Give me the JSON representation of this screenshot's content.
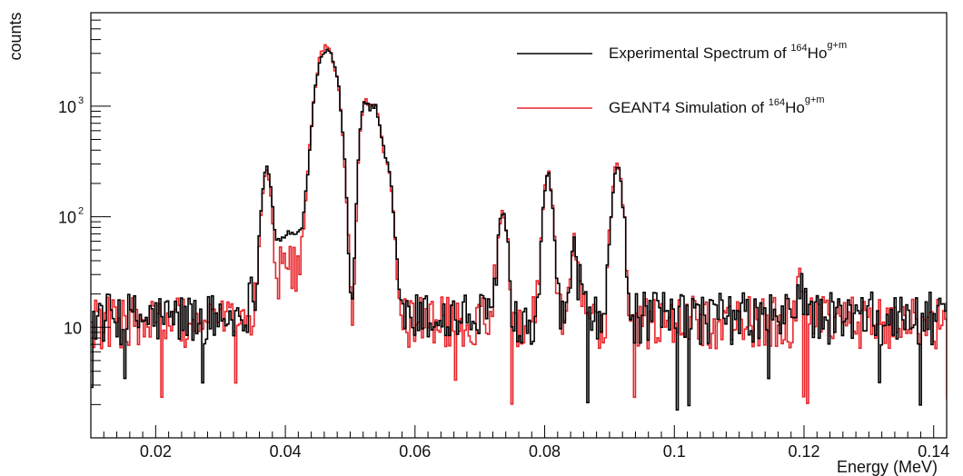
{
  "chart_data": {
    "type": "line",
    "title": "",
    "xlabel": "Energy (MeV)",
    "ylabel": "counts",
    "xlim": [
      0.01,
      0.142
    ],
    "ylim": [
      1.0,
      7000
    ],
    "y_scale": "log",
    "grid": false,
    "legend_position": "top-right",
    "x_ticks": [
      {
        "value": 0.02,
        "label": "0.02"
      },
      {
        "value": 0.04,
        "label": "0.04"
      },
      {
        "value": 0.06,
        "label": "0.06"
      },
      {
        "value": 0.08,
        "label": "0.08"
      },
      {
        "value": 0.1,
        "label": "0.1"
      },
      {
        "value": 0.12,
        "label": "0.12"
      },
      {
        "value": 0.14,
        "label": "0.14"
      }
    ],
    "y_ticks": [
      {
        "value": 10,
        "base": "10",
        "exp": ""
      },
      {
        "value": 100,
        "base": "10",
        "exp": "2"
      },
      {
        "value": 1000,
        "base": "10",
        "exp": "3"
      }
    ],
    "bin_width": 0.0003,
    "series": [
      {
        "name": "Experimental Spectrum of 164Ho g+m",
        "legend": {
          "prefix": "Experimental Spectrum of ",
          "mass": "164",
          "element": "Ho",
          "state": "g+m"
        },
        "color": "#000000",
        "baseline": 12,
        "peaks": [
          {
            "center": 0.0371,
            "height": 245,
            "width": 0.0006
          },
          {
            "center": 0.0408,
            "height": 60,
            "width": 0.0028
          },
          {
            "center": 0.046,
            "height": 3000,
            "width": 0.0011
          },
          {
            "center": 0.0477,
            "height": 1300,
            "width": 0.0008
          },
          {
            "center": 0.0522,
            "height": 960,
            "width": 0.0007
          },
          {
            "center": 0.0538,
            "height": 900,
            "width": 0.0007
          },
          {
            "center": 0.0555,
            "height": 290,
            "width": 0.0008
          },
          {
            "center": 0.0735,
            "height": 100,
            "width": 0.0006
          },
          {
            "center": 0.0805,
            "height": 230,
            "width": 0.0006
          },
          {
            "center": 0.0845,
            "height": 28,
            "width": 0.0007
          },
          {
            "center": 0.0912,
            "height": 285,
            "width": 0.0006
          },
          {
            "center": 0.1195,
            "height": 12,
            "width": 0.0006
          }
        ],
        "dips": [
          {
            "center": 0.0505,
            "depth": 0.6,
            "width": 0.0005
          }
        ]
      },
      {
        "name": "GEANT4 Simulation of 164Ho g+m",
        "legend": {
          "prefix": "GEANT4 Simulation of ",
          "mass": "164",
          "element": "Ho",
          "state": "g+m"
        },
        "color": "#e8262b",
        "baseline": 11,
        "peaks": [
          {
            "center": 0.0371,
            "height": 235,
            "width": 0.0006
          },
          {
            "center": 0.0408,
            "height": 25,
            "width": 0.0022
          },
          {
            "center": 0.046,
            "height": 3200,
            "width": 0.0011
          },
          {
            "center": 0.0477,
            "height": 1200,
            "width": 0.0008
          },
          {
            "center": 0.0522,
            "height": 1000,
            "width": 0.0007
          },
          {
            "center": 0.0538,
            "height": 920,
            "width": 0.0007
          },
          {
            "center": 0.0555,
            "height": 280,
            "width": 0.0008
          },
          {
            "center": 0.0735,
            "height": 95,
            "width": 0.0006
          },
          {
            "center": 0.0805,
            "height": 240,
            "width": 0.0006
          },
          {
            "center": 0.0845,
            "height": 32,
            "width": 0.0007
          },
          {
            "center": 0.0912,
            "height": 300,
            "width": 0.0006
          },
          {
            "center": 0.1195,
            "height": 14,
            "width": 0.0006
          }
        ],
        "dips": [
          {
            "center": 0.0505,
            "depth": 0.85,
            "width": 0.0005
          }
        ]
      }
    ]
  }
}
